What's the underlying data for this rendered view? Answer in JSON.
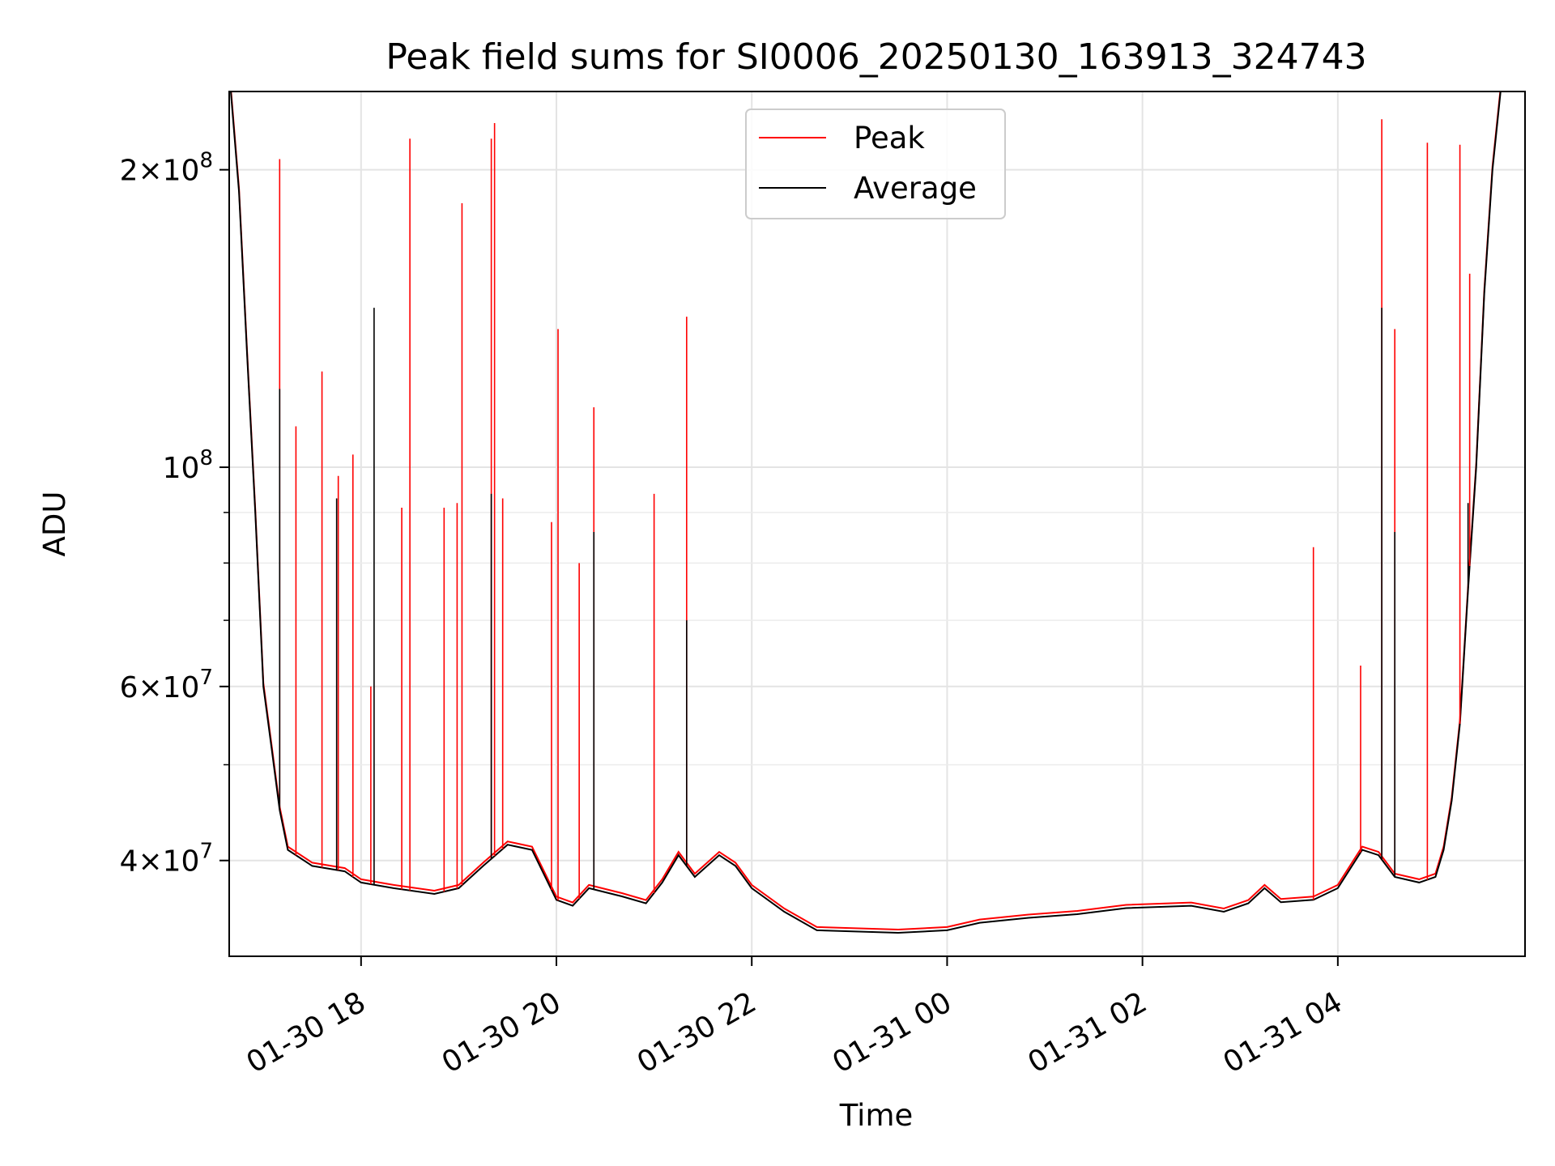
{
  "chart_data": {
    "type": "line",
    "title": "Peak field sums for SI0006_20250130_163913_324743",
    "xlabel": "Time",
    "ylabel": "ADU",
    "y_scale": "log",
    "ylim": [
      32000000,
      240000000
    ],
    "x_range": [
      "2025-01-30 16:39",
      "2025-01-31 05:55"
    ],
    "x_ticks": [
      {
        "t": "2025-01-30 18:00",
        "label": "01-30 18"
      },
      {
        "t": "2025-01-30 20:00",
        "label": "01-30 20"
      },
      {
        "t": "2025-01-30 22:00",
        "label": "01-30 22"
      },
      {
        "t": "2025-01-31 00:00",
        "label": "01-31 00"
      },
      {
        "t": "2025-01-31 02:00",
        "label": "01-31 02"
      },
      {
        "t": "2025-01-31 04:00",
        "label": "01-31 04"
      }
    ],
    "y_ticks": [
      {
        "v": 40000000,
        "mant": "4",
        "exp": "7"
      },
      {
        "v": 60000000,
        "mant": "6",
        "exp": "7"
      },
      {
        "v": 100000000,
        "mant": "",
        "exp": "8"
      },
      {
        "v": 200000000,
        "mant": "2",
        "exp": "8"
      }
    ],
    "y_minor_ticks": [
      50000000,
      70000000,
      80000000,
      90000000
    ],
    "grid": true,
    "legend": {
      "position": "top-center",
      "entries": [
        "Peak",
        "Average"
      ]
    },
    "series": [
      {
        "name": "Average",
        "color": "#000000",
        "baseline": [
          [
            "2025-01-30 16:40",
            240000000
          ],
          [
            "2025-01-30 16:45",
            190000000
          ],
          [
            "2025-01-30 16:50",
            130000000
          ],
          [
            "2025-01-30 16:55",
            90000000
          ],
          [
            "2025-01-30 17:00",
            60000000
          ],
          [
            "2025-01-30 17:05",
            52000000
          ],
          [
            "2025-01-30 17:10",
            45000000
          ],
          [
            "2025-01-30 17:15",
            41000000
          ],
          [
            "2025-01-30 17:30",
            39500000
          ],
          [
            "2025-01-30 17:50",
            39000000
          ],
          [
            "2025-01-30 18:00",
            38000000
          ],
          [
            "2025-01-30 18:20",
            37500000
          ],
          [
            "2025-01-30 18:45",
            37000000
          ],
          [
            "2025-01-30 19:00",
            37500000
          ],
          [
            "2025-01-30 19:15",
            39500000
          ],
          [
            "2025-01-30 19:30",
            41500000
          ],
          [
            "2025-01-30 19:45",
            41000000
          ],
          [
            "2025-01-30 20:00",
            36500000
          ],
          [
            "2025-01-30 20:10",
            36000000
          ],
          [
            "2025-01-30 20:20",
            37500000
          ],
          [
            "2025-01-30 20:40",
            36800000
          ],
          [
            "2025-01-30 20:55",
            36200000
          ],
          [
            "2025-01-30 21:05",
            38000000
          ],
          [
            "2025-01-30 21:15",
            40500000
          ],
          [
            "2025-01-30 21:25",
            38500000
          ],
          [
            "2025-01-30 21:40",
            40500000
          ],
          [
            "2025-01-30 21:50",
            39500000
          ],
          [
            "2025-01-30 22:00",
            37500000
          ],
          [
            "2025-01-30 22:20",
            35500000
          ],
          [
            "2025-01-30 22:40",
            34000000
          ],
          [
            "2025-01-30 23:30",
            33800000
          ],
          [
            "2025-01-31 00:00",
            34000000
          ],
          [
            "2025-01-31 00:20",
            34600000
          ],
          [
            "2025-01-31 00:50",
            35000000
          ],
          [
            "2025-01-31 01:20",
            35300000
          ],
          [
            "2025-01-31 01:50",
            35800000
          ],
          [
            "2025-01-31 02:30",
            36000000
          ],
          [
            "2025-01-31 02:50",
            35500000
          ],
          [
            "2025-01-31 03:05",
            36200000
          ],
          [
            "2025-01-31 03:15",
            37500000
          ],
          [
            "2025-01-31 03:25",
            36300000
          ],
          [
            "2025-01-31 03:45",
            36500000
          ],
          [
            "2025-01-31 04:00",
            37500000
          ],
          [
            "2025-01-31 04:15",
            41000000
          ],
          [
            "2025-01-31 04:25",
            40500000
          ],
          [
            "2025-01-31 04:35",
            38500000
          ],
          [
            "2025-01-31 04:50",
            38000000
          ],
          [
            "2025-01-31 05:00",
            38500000
          ],
          [
            "2025-01-31 05:05",
            41000000
          ],
          [
            "2025-01-31 05:10",
            46000000
          ],
          [
            "2025-01-31 05:15",
            55000000
          ],
          [
            "2025-01-31 05:20",
            75000000
          ],
          [
            "2025-01-31 05:25",
            100000000
          ],
          [
            "2025-01-31 05:30",
            150000000
          ],
          [
            "2025-01-31 05:35",
            200000000
          ],
          [
            "2025-01-31 05:40",
            240000000
          ]
        ],
        "spikes": [
          [
            "2025-01-30 17:10",
            120000000
          ],
          [
            "2025-01-30 17:45",
            93000000
          ],
          [
            "2025-01-30 18:08",
            145000000
          ],
          [
            "2025-01-30 19:20",
            94000000
          ],
          [
            "2025-01-30 20:23",
            86000000
          ],
          [
            "2025-01-30 21:20",
            70000000
          ],
          [
            "2025-01-31 04:27",
            145000000
          ],
          [
            "2025-01-31 04:35",
            86000000
          ],
          [
            "2025-01-31 05:20",
            92000000
          ]
        ]
      },
      {
        "name": "Peak",
        "color": "#ff0000",
        "spikes": [
          [
            "2025-01-30 17:10",
            205000000
          ],
          [
            "2025-01-30 17:20",
            110000000
          ],
          [
            "2025-01-30 17:36",
            125000000
          ],
          [
            "2025-01-30 17:46",
            98000000
          ],
          [
            "2025-01-30 17:55",
            103000000
          ],
          [
            "2025-01-30 18:06",
            60000000
          ],
          [
            "2025-01-30 18:25",
            91000000
          ],
          [
            "2025-01-30 18:30",
            215000000
          ],
          [
            "2025-01-30 18:51",
            91000000
          ],
          [
            "2025-01-30 18:59",
            92000000
          ],
          [
            "2025-01-30 19:02",
            185000000
          ],
          [
            "2025-01-30 19:20",
            215000000
          ],
          [
            "2025-01-30 19:22",
            223000000
          ],
          [
            "2025-01-30 19:27",
            93000000
          ],
          [
            "2025-01-30 19:57",
            88000000
          ],
          [
            "2025-01-30 20:01",
            138000000
          ],
          [
            "2025-01-30 20:14",
            80000000
          ],
          [
            "2025-01-30 20:23",
            115000000
          ],
          [
            "2025-01-30 21:00",
            94000000
          ],
          [
            "2025-01-30 21:20",
            142000000
          ],
          [
            "2025-01-31 03:45",
            83000000
          ],
          [
            "2025-01-31 04:14",
            63000000
          ],
          [
            "2025-01-31 04:27",
            225000000
          ],
          [
            "2025-01-31 04:35",
            138000000
          ],
          [
            "2025-01-31 04:55",
            213000000
          ],
          [
            "2025-01-31 05:15",
            212000000
          ],
          [
            "2025-01-31 05:21",
            157000000
          ]
        ]
      }
    ]
  }
}
